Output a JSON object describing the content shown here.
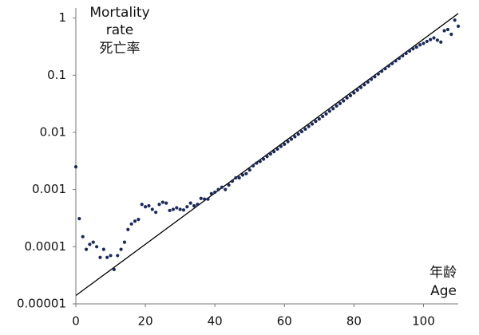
{
  "chart_data": {
    "type": "scatter",
    "ylabel": [
      "Mortality",
      "rate",
      "死亡率"
    ],
    "xlabel": [
      "年龄",
      "Age"
    ],
    "log_y": true,
    "xlim": [
      0,
      110
    ],
    "xticks": [
      0,
      20,
      40,
      60,
      80,
      100
    ],
    "ylim": [
      1e-05,
      1.5
    ],
    "yticks": [
      1e-05,
      0.0001,
      0.001,
      0.01,
      0.1,
      1
    ],
    "color": "#1b2a5a",
    "x": [
      0,
      1,
      2,
      3,
      4,
      5,
      6,
      7,
      8,
      9,
      10,
      11,
      12,
      13,
      14,
      15,
      16,
      17,
      18,
      19,
      20,
      21,
      22,
      23,
      24,
      25,
      26,
      27,
      28,
      29,
      30,
      31,
      32,
      33,
      34,
      35,
      36,
      37,
      38,
      39,
      40,
      41,
      42,
      43,
      44,
      45,
      46,
      47,
      48,
      49,
      50,
      51,
      52,
      53,
      54,
      55,
      56,
      57,
      58,
      59,
      60,
      61,
      62,
      63,
      64,
      65,
      66,
      67,
      68,
      69,
      70,
      71,
      72,
      73,
      74,
      75,
      76,
      77,
      78,
      79,
      80,
      81,
      82,
      83,
      84,
      85,
      86,
      87,
      88,
      89,
      90,
      91,
      92,
      93,
      94,
      95,
      96,
      97,
      98,
      99,
      100,
      101,
      102,
      103,
      104,
      105,
      106,
      107,
      108,
      109,
      110
    ],
    "values": [
      0.0025,
      0.00031,
      0.00015,
      9e-05,
      0.00011,
      0.00012,
      0.0001,
      6.5e-05,
      9e-05,
      6.5e-05,
      7e-05,
      4e-05,
      7e-05,
      9e-05,
      0.00012,
      0.0002,
      0.00025,
      0.00028,
      0.0003,
      0.00055,
      0.0005,
      0.00052,
      0.00045,
      0.0004,
      0.00055,
      0.0006,
      0.00058,
      0.00043,
      0.00045,
      0.00048,
      0.00045,
      0.00044,
      0.0005,
      0.00058,
      0.00052,
      0.00055,
      0.0007,
      0.00068,
      0.00068,
      0.00085,
      0.0009,
      0.001,
      0.0011,
      0.001,
      0.0012,
      0.0014,
      0.0016,
      0.0016,
      0.0018,
      0.0019,
      0.0022,
      0.0026,
      0.0029,
      0.0031,
      0.0034,
      0.0038,
      0.0042,
      0.0046,
      0.0051,
      0.0057,
      0.0062,
      0.0069,
      0.0076,
      0.0084,
      0.0093,
      0.0103,
      0.0114,
      0.0127,
      0.014,
      0.0156,
      0.0172,
      0.019,
      0.021,
      0.0235,
      0.026,
      0.029,
      0.032,
      0.0355,
      0.04,
      0.044,
      0.049,
      0.055,
      0.061,
      0.068,
      0.076,
      0.085,
      0.094,
      0.105,
      0.117,
      0.13,
      0.145,
      0.16,
      0.178,
      0.197,
      0.218,
      0.24,
      0.265,
      0.29,
      0.31,
      0.34,
      0.36,
      0.39,
      0.42,
      0.45,
      0.41,
      0.38,
      0.6,
      0.63,
      0.52,
      0.92,
      0.72
    ],
    "line": {
      "x": [
        0,
        110
      ],
      "values": [
        1.4e-05,
        1.2
      ],
      "color": "#000000"
    }
  }
}
